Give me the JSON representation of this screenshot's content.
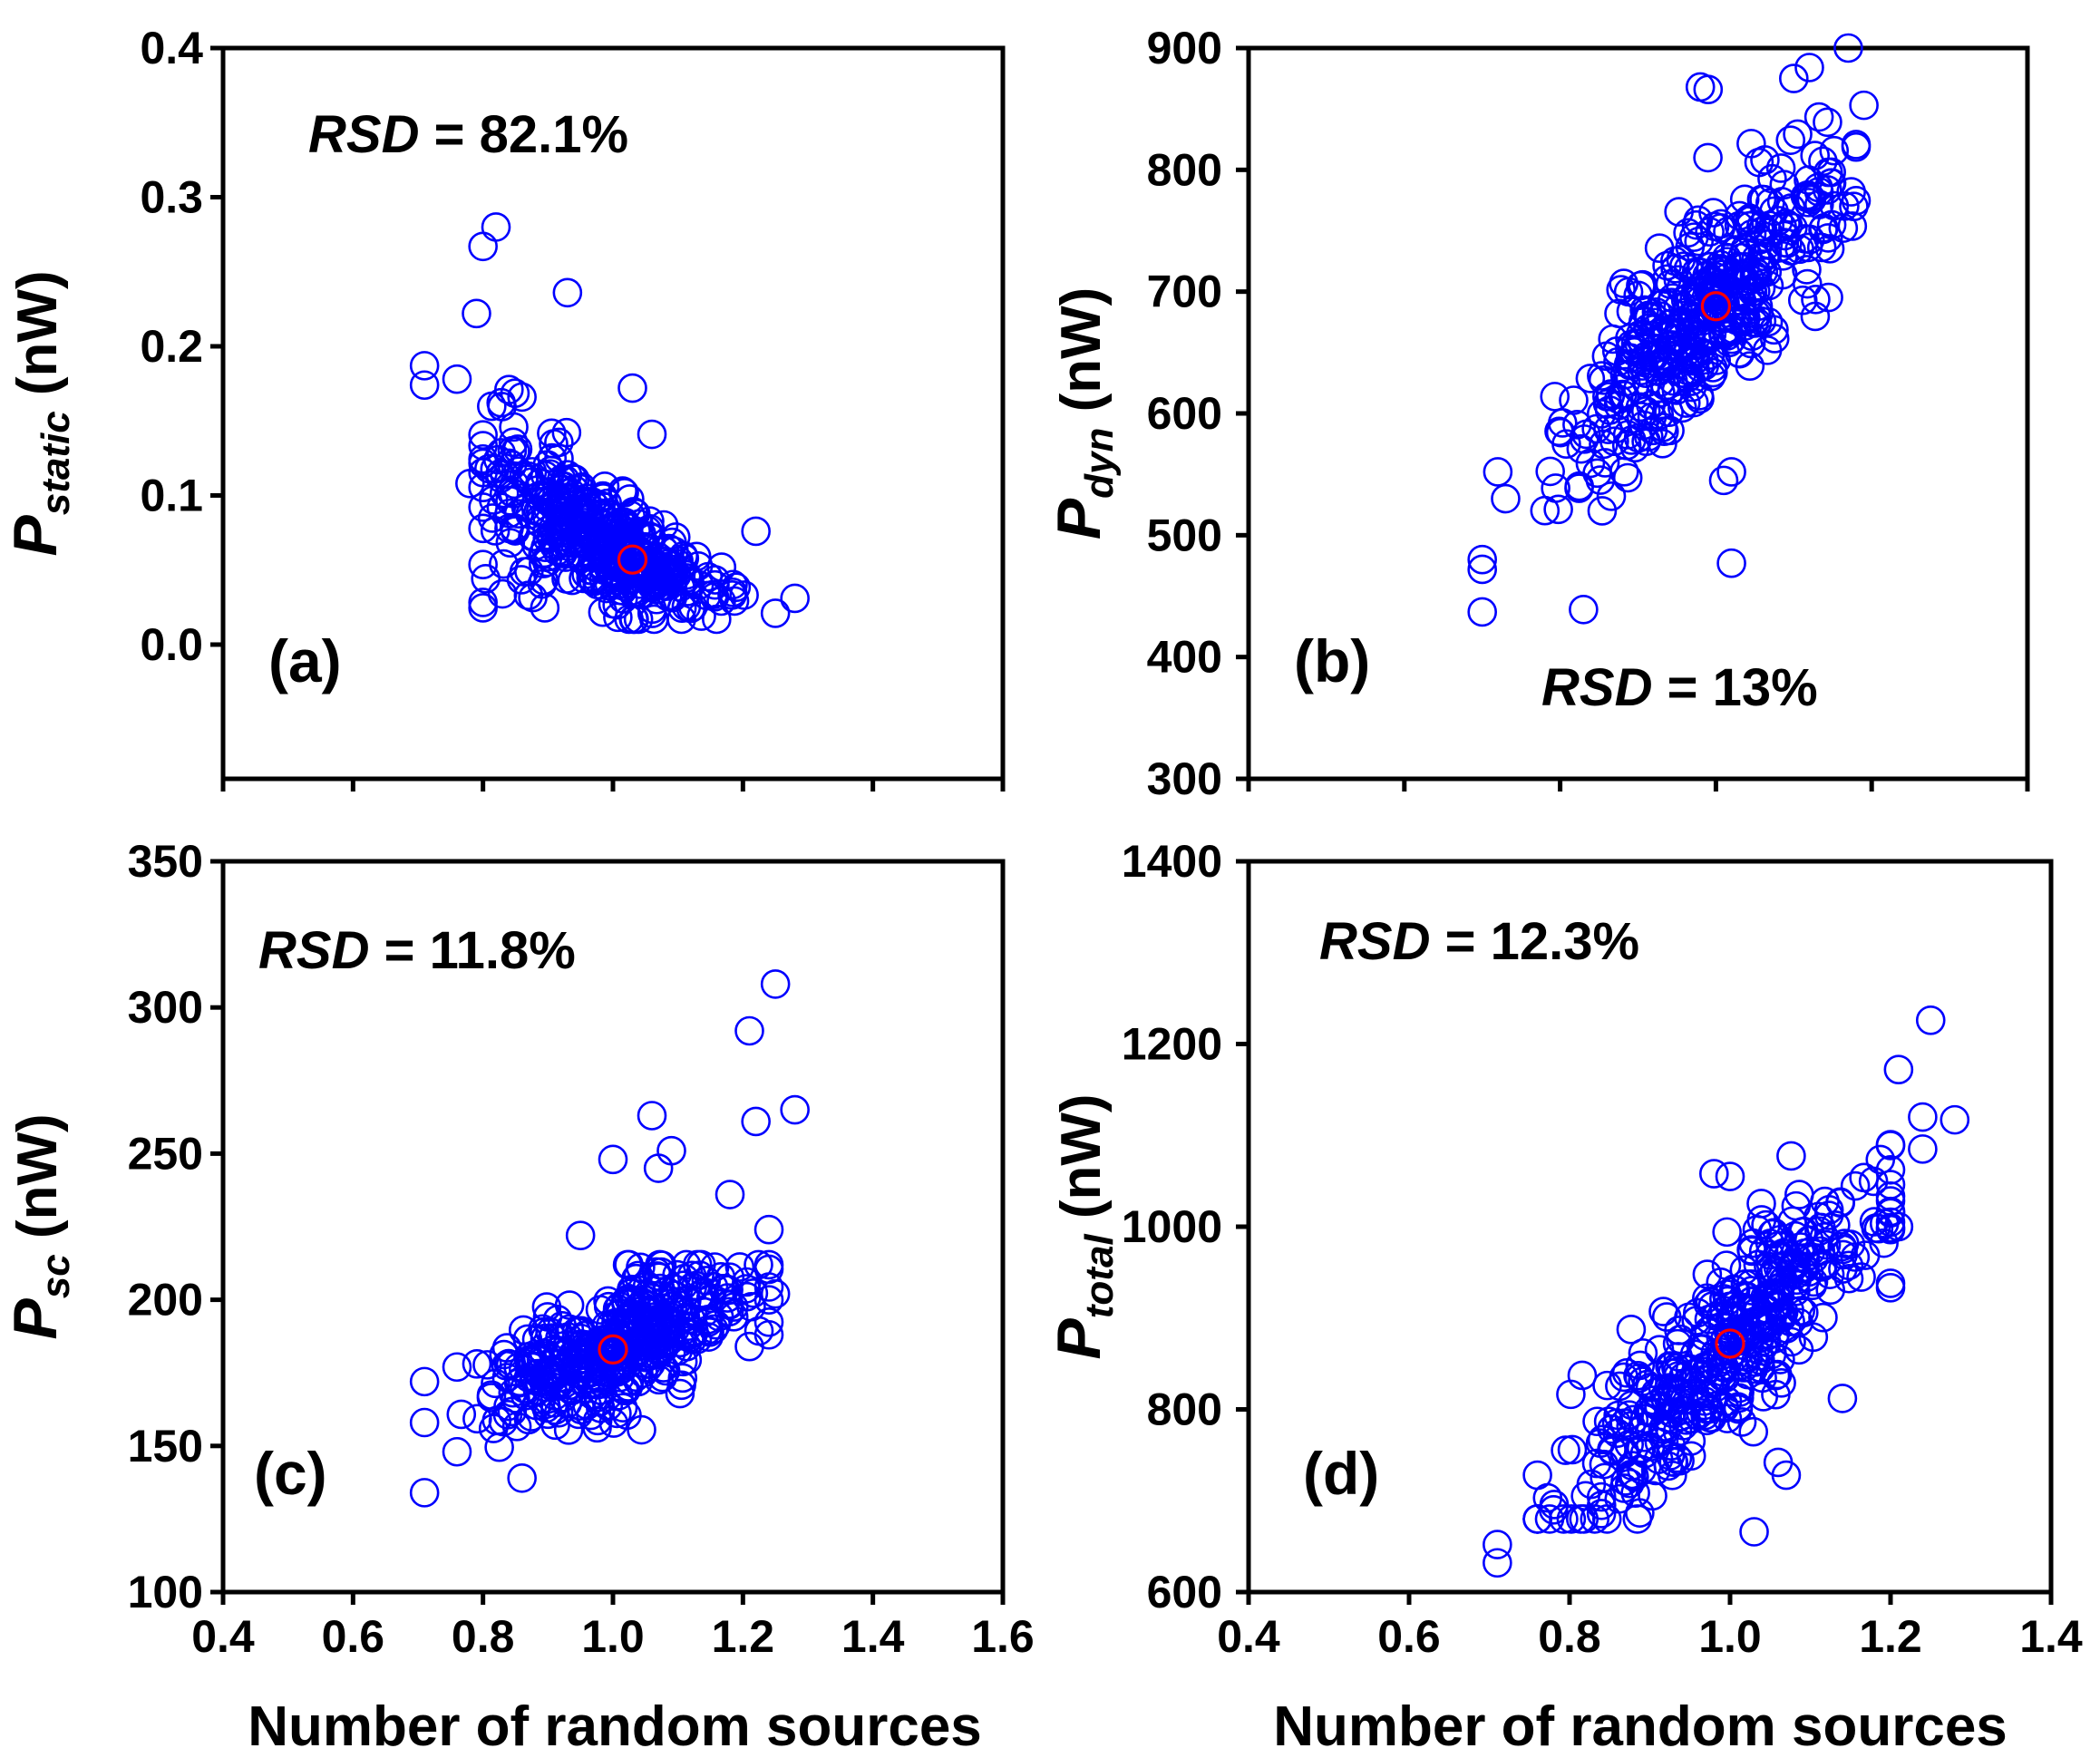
{
  "chart_data": [
    {
      "type": "scatter",
      "panel_label": "(a)",
      "annotation": {
        "text_italic": "RSD",
        "text_rest": " = 82.1%"
      },
      "ylabel": {
        "main": "P",
        "sub": "static",
        "unit": " (nW)"
      },
      "xlabel": "",
      "xlim": [
        0.4,
        1.6
      ],
      "ylim": [
        -0.09,
        0.4
      ],
      "xticks": [],
      "xtick_positions": [
        0.4,
        0.6,
        0.8,
        1.0,
        1.2,
        1.4,
        1.6
      ],
      "yticks": [
        "0.0",
        "0.1",
        "0.2",
        "0.3",
        "0.4"
      ],
      "ytick_values": [
        0.0,
        0.1,
        0.2,
        0.3,
        0.4
      ],
      "marker_color": "#0000ff",
      "highlight": {
        "x": 1.03,
        "y": 0.057,
        "color": "#ff0000"
      },
      "cloud": {
        "n": 420,
        "xmean": 0.98,
        "xsd": 0.095,
        "xmin": 0.8,
        "xmax": 1.26,
        "fy": {
          "kind": "exp",
          "a": 0.057,
          "k": -3.4,
          "x0": 1.03
        },
        "rel_noise": 0.28,
        "ymin": 0.017
      },
      "outliers": [
        [
          0.71,
          0.187
        ],
        [
          0.71,
          0.174
        ],
        [
          0.76,
          0.178
        ],
        [
          0.8,
          0.267
        ],
        [
          0.82,
          0.28
        ],
        [
          0.79,
          0.222
        ],
        [
          0.93,
          0.236
        ],
        [
          1.03,
          0.172
        ],
        [
          1.06,
          0.141
        ],
        [
          0.84,
          0.171
        ],
        [
          0.86,
          0.166
        ],
        [
          0.78,
          0.108
        ],
        [
          1.22,
          0.076
        ],
        [
          1.28,
          0.031
        ],
        [
          1.25,
          0.021
        ],
        [
          0.83,
          0.034
        ],
        [
          0.87,
          0.033
        ]
      ]
    },
    {
      "type": "scatter",
      "panel_label": "(b)",
      "annotation": {
        "text_italic": "RSD",
        "text_rest": " = 13%"
      },
      "ylabel": {
        "main": "P",
        "sub": "dyn",
        "unit": " (nW)"
      },
      "xlabel": "",
      "xlim": [
        0.4,
        1.4
      ],
      "ylim": [
        300,
        900
      ],
      "xticks": [],
      "xtick_positions": [
        0.4,
        0.6,
        0.8,
        1.0,
        1.2,
        1.4
      ],
      "yticks": [
        "300",
        "400",
        "500",
        "600",
        "700",
        "800",
        "900"
      ],
      "ytick_values": [
        300,
        400,
        500,
        600,
        700,
        800,
        900
      ],
      "marker_color": "#0000ff",
      "highlight": {
        "x": 1.0,
        "y": 688,
        "color": "#ff0000"
      },
      "cloud": {
        "n": 420,
        "xmean": 0.99,
        "xsd": 0.085,
        "xmin": 0.78,
        "xmax": 1.18,
        "fy": {
          "kind": "lin",
          "a": 688,
          "b": 590,
          "x0": 1.0
        },
        "abs_noise": 40,
        "ymin": 520,
        "ymax": 895
      },
      "outliers": [
        [
          0.7,
          480
        ],
        [
          0.7,
          472
        ],
        [
          0.7,
          437
        ],
        [
          0.83,
          439
        ],
        [
          1.02,
          477
        ],
        [
          1.01,
          545
        ],
        [
          1.02,
          552
        ],
        [
          1.19,
          853
        ],
        [
          1.17,
          900
        ],
        [
          0.98,
          868
        ],
        [
          0.99,
          866
        ],
        [
          1.1,
          875
        ],
        [
          1.12,
          884
        ],
        [
          0.72,
          552
        ],
        [
          0.73,
          530
        ]
      ]
    },
    {
      "type": "scatter",
      "panel_label": "(c)",
      "annotation": {
        "text_italic": "RSD",
        "text_rest": " = 11.8%"
      },
      "ylabel": {
        "main": "P",
        "sub": "sc",
        "unit": " (nW)"
      },
      "xlabel": "Number of random sources",
      "xlim": [
        0.4,
        1.6
      ],
      "ylim": [
        100,
        350
      ],
      "xticks": [
        "0.4",
        "0.6",
        "0.8",
        "1.0",
        "1.2",
        "1.4",
        "1.6"
      ],
      "xtick_positions": [
        0.4,
        0.6,
        0.8,
        1.0,
        1.2,
        1.4,
        1.6
      ],
      "yticks": [
        "100",
        "150",
        "200",
        "250",
        "300",
        "350"
      ],
      "ytick_values": [
        100,
        150,
        200,
        250,
        300,
        350
      ],
      "marker_color": "#0000ff",
      "highlight": {
        "x": 1.0,
        "y": 183,
        "color": "#ff0000"
      },
      "cloud": {
        "n": 420,
        "xmean": 1.0,
        "xsd": 0.1,
        "xmin": 0.76,
        "xmax": 1.24,
        "fy": {
          "kind": "lin",
          "a": 183,
          "b": 85,
          "x0": 1.0
        },
        "abs_noise": 11,
        "ymin": 148,
        "ymax": 212
      },
      "outliers": [
        [
          0.71,
          134
        ],
        [
          0.71,
          158
        ],
        [
          0.71,
          172
        ],
        [
          0.76,
          177
        ],
        [
          1.0,
          248
        ],
        [
          0.95,
          222
        ],
        [
          1.06,
          263
        ],
        [
          1.07,
          245
        ],
        [
          1.09,
          251
        ],
        [
          1.18,
          236
        ],
        [
          1.21,
          292
        ],
        [
          1.22,
          261
        ],
        [
          1.25,
          308
        ],
        [
          1.28,
          265
        ],
        [
          1.24,
          224
        ],
        [
          1.25,
          202
        ],
        [
          1.21,
          184
        ],
        [
          0.86,
          139
        ]
      ]
    },
    {
      "type": "scatter",
      "panel_label": "(d)",
      "annotation": {
        "text_italic": "RSD",
        "text_rest": " = 12.3%"
      },
      "ylabel": {
        "main": "P",
        "sub": "total",
        "unit": " (nW)"
      },
      "xlabel": "Number of random sources",
      "xlim": [
        0.4,
        1.4
      ],
      "ylim": [
        600,
        1400
      ],
      "xticks": [
        "0.4",
        "0.6",
        "0.8",
        "1.0",
        "1.2",
        "1.4"
      ],
      "xtick_positions": [
        0.4,
        0.6,
        0.8,
        1.0,
        1.2,
        1.4
      ],
      "yticks": [
        "600",
        "800",
        "1000",
        "1200",
        "1400"
      ],
      "ytick_values": [
        600,
        800,
        1000,
        1200,
        1400
      ],
      "marker_color": "#0000ff",
      "highlight": {
        "x": 1.0,
        "y": 872,
        "color": "#ff0000"
      },
      "cloud": {
        "n": 420,
        "xmean": 1.0,
        "xsd": 0.1,
        "xmin": 0.76,
        "xmax": 1.2,
        "fy": {
          "kind": "lin",
          "a": 872,
          "b": 880,
          "x0": 1.0
        },
        "abs_noise": 48,
        "ymin": 680,
        "ymax": 1100
      },
      "outliers": [
        [
          0.71,
          652
        ],
        [
          0.71,
          632
        ],
        [
          0.76,
          728
        ],
        [
          0.78,
          690
        ],
        [
          1.03,
          666
        ],
        [
          1.25,
          1226
        ],
        [
          1.21,
          1172
        ],
        [
          1.24,
          1120
        ],
        [
          1.28,
          1117
        ],
        [
          1.24,
          1085
        ],
        [
          1.14,
          812
        ],
        [
          0.98,
          1058
        ],
        [
          1.0,
          1055
        ],
        [
          1.06,
          742
        ],
        [
          1.07,
          728
        ],
        [
          1.21,
          1000
        ],
        [
          1.2,
          938
        ]
      ]
    }
  ]
}
